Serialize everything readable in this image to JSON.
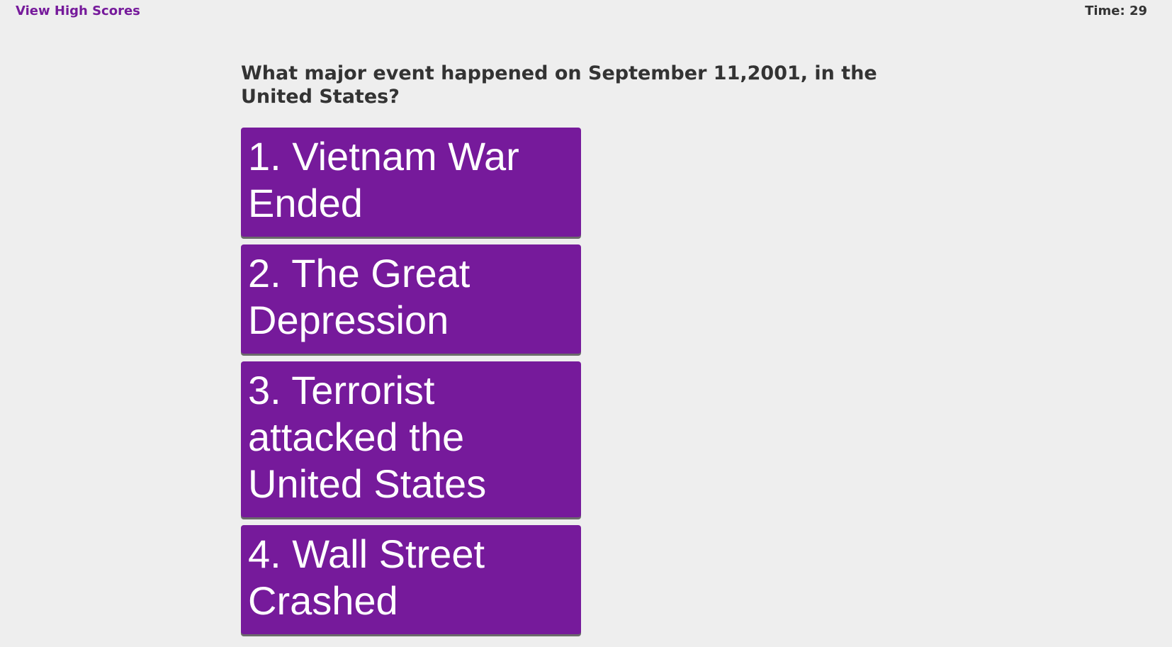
{
  "header": {
    "high_scores_link": "View High Scores",
    "timer": "Time: 29"
  },
  "quiz": {
    "question": "What major event happened on September 11,2001, in the United States?",
    "choices": [
      {
        "label": "1. Vietnam War Ended"
      },
      {
        "label": "2. The Great Depression"
      },
      {
        "label": "3. Terrorist attacked the United States"
      },
      {
        "label": "4. Wall Street Crashed"
      }
    ]
  },
  "colors": {
    "accent": "#761a9b",
    "background": "#eeeeee",
    "text": "#333333",
    "button_text": "#ffffff"
  }
}
